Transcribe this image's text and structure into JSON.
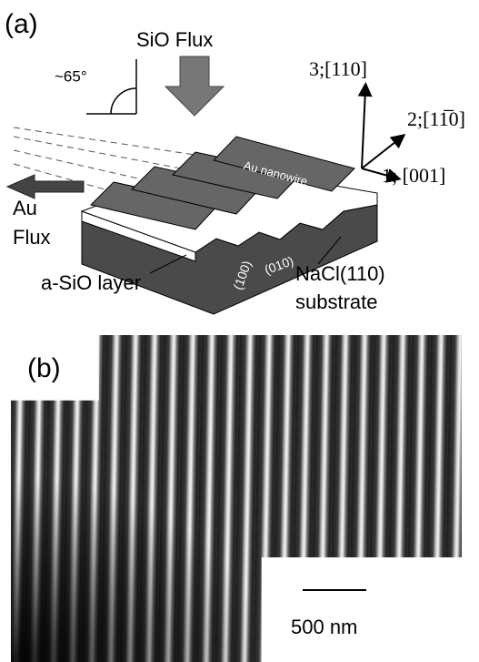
{
  "panel_a": {
    "label": "(a)",
    "sio_flux": "SiO Flux",
    "angle": "~65°",
    "axis_3": "3;[110]",
    "axis_2": "2;[11̅0]",
    "axis_1": "1; [001]",
    "nanowire": "Au nanowire",
    "au_flux": [
      "Au",
      "Flux"
    ],
    "layer": "a-SiO layer",
    "facets": [
      "(100)",
      "(010)"
    ],
    "substrate": [
      "NaCl(110)",
      "substrate"
    ]
  },
  "panel_b": {
    "label": "(b)",
    "scale_bar": "500 nm"
  }
}
